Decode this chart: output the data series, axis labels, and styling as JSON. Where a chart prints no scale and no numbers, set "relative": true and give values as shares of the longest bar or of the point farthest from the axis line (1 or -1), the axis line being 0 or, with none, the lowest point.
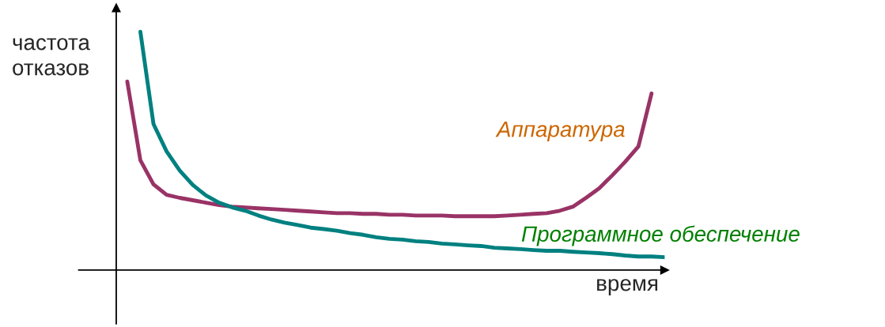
{
  "chart_data": {
    "type": "line",
    "relative": true,
    "xlabel": "время",
    "ylabel": "частота\nотказов",
    "legend": false,
    "marker": "none",
    "line_style": "solid",
    "categories": [
      null,
      null,
      null,
      null,
      null,
      null,
      null,
      null,
      null,
      null,
      null,
      null,
      null,
      null,
      null,
      null,
      null,
      null,
      null,
      null,
      null,
      null,
      null,
      null,
      null,
      null,
      null,
      null,
      null,
      null,
      null,
      null,
      null,
      null,
      null,
      null,
      null,
      null,
      null,
      null,
      null,
      null
    ],
    "series": [
      {
        "name": "Аппаратура",
        "color": "#993366",
        "values": [
          0.791,
          0.461,
          0.36,
          0.316,
          0.303,
          0.293,
          0.283,
          0.273,
          0.266,
          0.263,
          0.259,
          0.256,
          0.253,
          0.249,
          0.246,
          0.242,
          0.239,
          0.239,
          0.236,
          0.236,
          0.232,
          0.232,
          0.229,
          0.229,
          0.229,
          0.226,
          0.226,
          0.226,
          0.226,
          0.229,
          0.232,
          0.236,
          0.239,
          0.249,
          0.266,
          0.303,
          0.343,
          0.397,
          0.455,
          0.519,
          0.741,
          null
        ]
      },
      {
        "name": "Программное обеспечение",
        "color": "#008080",
        "values": [
          null,
          1.0,
          0.613,
          0.498,
          0.418,
          0.357,
          0.313,
          0.283,
          0.263,
          0.249,
          0.229,
          0.212,
          0.199,
          0.189,
          0.178,
          0.172,
          0.165,
          0.155,
          0.148,
          0.138,
          0.131,
          0.128,
          0.121,
          0.118,
          0.111,
          0.108,
          0.104,
          0.101,
          0.094,
          0.091,
          0.088,
          0.084,
          0.081,
          0.081,
          0.077,
          0.074,
          0.071,
          0.067,
          0.061,
          0.057,
          0.057,
          0.054
        ]
      }
    ]
  }
}
